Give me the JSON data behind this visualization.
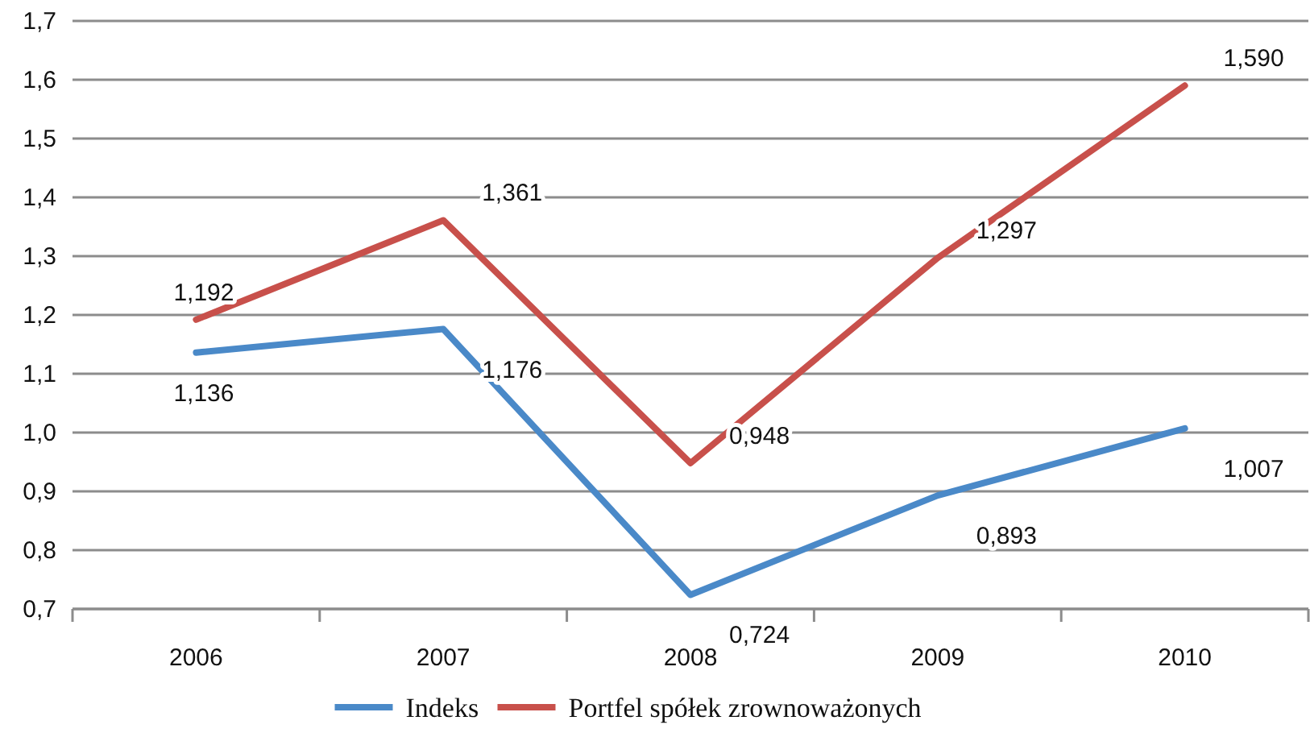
{
  "chart_data": {
    "type": "line",
    "categories": [
      "2006",
      "2007",
      "2008",
      "2009",
      "2010"
    ],
    "series": [
      {
        "name": "Indeks",
        "color": "#4a89c8",
        "values": [
          1.136,
          1.176,
          0.724,
          0.893,
          1.007
        ],
        "value_labels": [
          "1,136",
          "1,176",
          "0,724",
          "0,893",
          "1,007"
        ]
      },
      {
        "name": "Portfel spółek zrownoważonych",
        "color": "#c8504b",
        "values": [
          1.192,
          1.361,
          0.948,
          1.297,
          1.59
        ],
        "value_labels": [
          "1,192",
          "1,361",
          "0,948",
          "1,297",
          "1,590"
        ]
      }
    ],
    "ylim": [
      0.7,
      1.7
    ],
    "yticks": [
      {
        "value": 0.7,
        "label": "0,7"
      },
      {
        "value": 0.8,
        "label": "0,8"
      },
      {
        "value": 0.9,
        "label": "0,9"
      },
      {
        "value": 1.0,
        "label": "1,0"
      },
      {
        "value": 1.1,
        "label": "1,1"
      },
      {
        "value": 1.2,
        "label": "1,2"
      },
      {
        "value": 1.3,
        "label": "1,3"
      },
      {
        "value": 1.4,
        "label": "1,4"
      },
      {
        "value": 1.5,
        "label": "1,5"
      },
      {
        "value": 1.6,
        "label": "1,6"
      },
      {
        "value": 1.7,
        "label": "1,7"
      }
    ],
    "grid": "y",
    "legend": "bottom",
    "marker": "none",
    "line_style": "solid"
  }
}
